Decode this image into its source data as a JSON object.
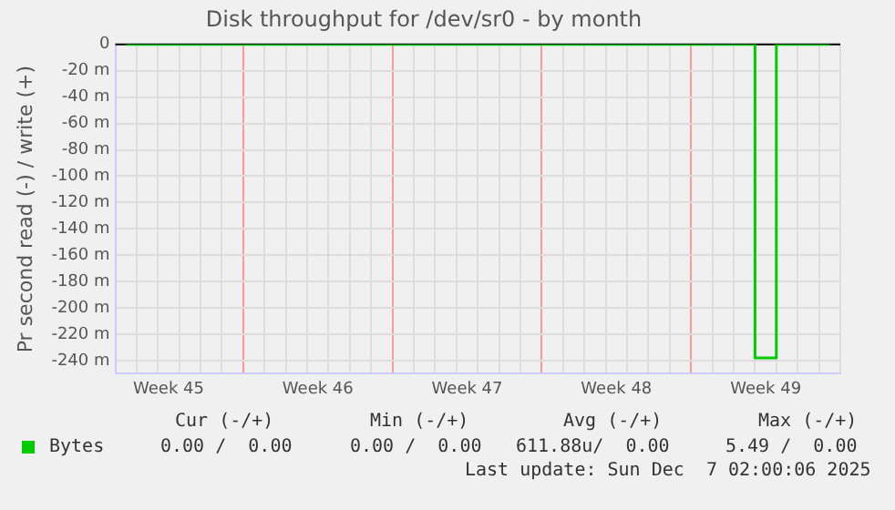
{
  "chart_data": {
    "type": "step",
    "title": "Disk throughput for /dev/sr0 - by month",
    "ylabel": "Pr second read (-) / write (+)",
    "categories": [
      null,
      null,
      "Week 45",
      null,
      null,
      null,
      null,
      null,
      null,
      "Week 46",
      null,
      null,
      null,
      null,
      null,
      null,
      "Week 47",
      null,
      null,
      null,
      null,
      null,
      null,
      "Week 48",
      null,
      null,
      null,
      null,
      null,
      null,
      "Week 49",
      null,
      null,
      null
    ],
    "series": [
      {
        "name": "Bytes",
        "color": "#00cc00",
        "values": [
          0,
          0,
          0,
          0,
          0,
          0,
          0,
          0,
          0,
          0,
          0,
          0,
          0,
          0,
          0,
          0,
          0,
          0,
          0,
          0,
          0,
          0,
          0,
          0,
          0,
          0,
          0,
          0,
          0,
          0,
          -238,
          0,
          0,
          0
        ]
      }
    ],
    "ylim": [
      -250,
      0
    ],
    "yticks": [
      0,
      {
        "value": -20,
        "label": "-20 m"
      },
      {
        "value": -40,
        "label": "-40 m"
      },
      {
        "value": -60,
        "label": "-60 m"
      },
      {
        "value": -80,
        "label": "-80 m"
      },
      {
        "value": -100,
        "label": "-100 m"
      },
      {
        "value": -120,
        "label": "-120 m"
      },
      {
        "value": -140,
        "label": "-140 m"
      },
      {
        "value": -160,
        "label": "-160 m"
      },
      {
        "value": -180,
        "label": "-180 m"
      },
      {
        "value": -200,
        "label": "-200 m"
      },
      {
        "value": -220,
        "label": "-220 m"
      },
      {
        "value": -240,
        "label": "-240 m"
      }
    ],
    "ref_lines": [
      {
        "axis": "y",
        "value": 0,
        "color": "#000000"
      }
    ],
    "grid": true,
    "legend": "bottom",
    "marker": "none",
    "line_style": "solid",
    "annotations": [
      "Cur (-/+)",
      "Min (-/+)",
      "Avg (-/+)",
      "Max (-/+)",
      "0.00 /  0.00",
      "0.00 /  0.00",
      "611.88u/  0.00",
      "5.49 /  0.00",
      "Last update: Sun Dec  7 02:00:06 2025"
    ]
  }
}
